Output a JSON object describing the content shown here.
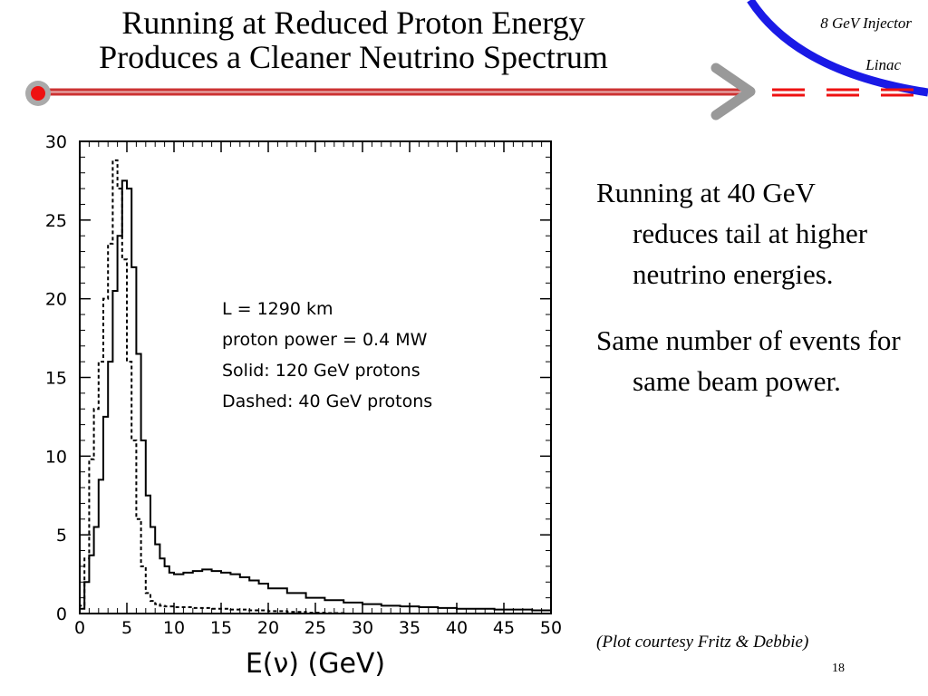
{
  "slide": {
    "title_line1": "Running at Reduced Proton Energy",
    "title_line2": "Produces a Cleaner Neutrino Spectrum",
    "brand_line1": "8 GeV Injector",
    "brand_line2": "Linac",
    "slide_number": "18",
    "credit": "(Plot courtesy Fritz & Debbie)",
    "bullets": [
      "Running at 40 GeV reduces tail at higher neutrino energies.",
      "Same number of events for same beam power."
    ],
    "colors": {
      "accent_red": "#cc3333",
      "dot_red": "#ee1111",
      "arrow_gray": "#999999",
      "arc_blue": "#1a1ae6"
    }
  },
  "chart_data": {
    "type": "line",
    "style": "step histogram",
    "xlabel": "E(ν) (GeV)",
    "ylabel": "",
    "xlim": [
      0,
      50
    ],
    "ylim": [
      0,
      30
    ],
    "x_ticks": [
      0,
      5,
      10,
      15,
      20,
      25,
      30,
      35,
      40,
      45,
      50
    ],
    "y_ticks": [
      0,
      5,
      10,
      15,
      20,
      25,
      30
    ],
    "annotations": [
      "L = 1290 km",
      "proton power = 0.4 MW",
      "Solid: 120 GeV protons",
      "Dashed: 40 GeV protons"
    ],
    "bin_width": 0.5,
    "series": [
      {
        "style": "solid",
        "x": [
          0.5,
          1.0,
          1.5,
          2.0,
          2.5,
          3.0,
          3.5,
          4.0,
          4.5,
          5.0,
          5.5,
          6.0,
          6.5,
          7.0,
          7.5,
          8.0,
          8.5,
          9.0,
          9.5,
          10.0,
          11.0,
          12.0,
          13.0,
          14.0,
          15.0,
          16.0,
          17.0,
          18.0,
          19.0,
          20.0,
          22.0,
          24.0,
          26.0,
          28.0,
          30.0,
          32.0,
          34.0,
          36.0,
          38.0,
          40.0,
          42.0,
          44.0,
          46.0,
          48.0,
          50.0
        ],
        "y": [
          0.3,
          2.0,
          3.7,
          5.5,
          8.5,
          12.5,
          16.0,
          20.5,
          24.0,
          27.5,
          27.0,
          22.0,
          16.5,
          11.0,
          7.5,
          5.5,
          4.4,
          3.5,
          3.0,
          2.6,
          2.5,
          2.6,
          2.7,
          2.8,
          2.7,
          2.6,
          2.5,
          2.3,
          2.1,
          1.9,
          1.6,
          1.3,
          1.0,
          0.85,
          0.7,
          0.6,
          0.5,
          0.45,
          0.4,
          0.35,
          0.3,
          0.3,
          0.25,
          0.25,
          0.2
        ]
      },
      {
        "style": "dashed",
        "x": [
          0.5,
          1.0,
          1.5,
          2.0,
          2.5,
          3.0,
          3.5,
          4.0,
          4.5,
          5.0,
          5.5,
          6.0,
          6.5,
          7.0,
          7.5,
          8.0,
          8.5,
          9.0,
          10.0,
          12.0,
          14.0,
          16.0,
          18.0,
          20.0,
          22.0,
          24.0,
          26.0,
          28.0,
          30.0,
          50.0
        ],
        "y": [
          0.5,
          3.5,
          9.8,
          13.0,
          16.0,
          20.0,
          23.5,
          28.8,
          27.0,
          22.5,
          16.0,
          11.0,
          6.0,
          3.0,
          1.3,
          0.8,
          0.6,
          0.5,
          0.45,
          0.4,
          0.35,
          0.3,
          0.25,
          0.2,
          0.15,
          0.1,
          0.05,
          0.03,
          0.0,
          0.0
        ]
      }
    ]
  }
}
